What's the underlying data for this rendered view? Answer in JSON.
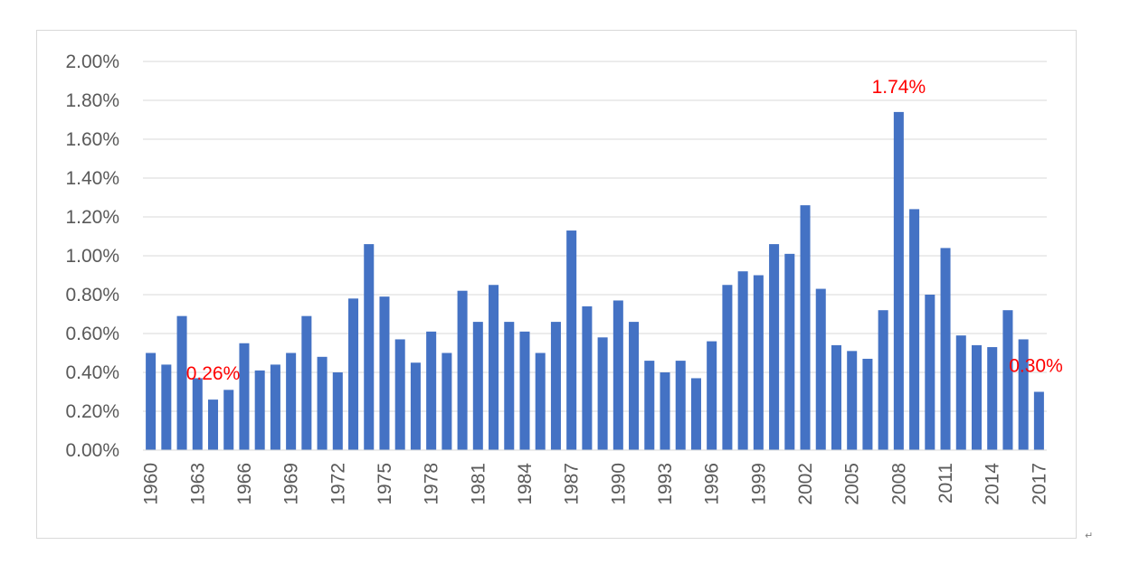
{
  "chart_data": {
    "type": "bar",
    "title": "",
    "xlabel": "",
    "ylabel": "",
    "ylim": [
      0,
      0.02
    ],
    "y_ticks": [
      "0.00%",
      "0.20%",
      "0.40%",
      "0.60%",
      "0.80%",
      "1.00%",
      "1.20%",
      "1.40%",
      "1.60%",
      "1.80%",
      "2.00%"
    ],
    "grid": true,
    "legend": "none",
    "bar_color": "#4472c4",
    "annotation_color": "#ff0000",
    "categories": [
      "1960",
      "1961",
      "1962",
      "1963",
      "1964",
      "1965",
      "1966",
      "1967",
      "1968",
      "1969",
      "1970",
      "1971",
      "1972",
      "1973",
      "1974",
      "1975",
      "1976",
      "1977",
      "1978",
      "1979",
      "1980",
      "1981",
      "1982",
      "1983",
      "1984",
      "1985",
      "1986",
      "1987",
      "1988",
      "1989",
      "1990",
      "1991",
      "1992",
      "1993",
      "1994",
      "1995",
      "1996",
      "1997",
      "1998",
      "1999",
      "2000",
      "2001",
      "2002",
      "2003",
      "2004",
      "2005",
      "2006",
      "2007",
      "2008",
      "2009",
      "2010",
      "2011",
      "2012",
      "2013",
      "2014",
      "2015",
      "2016",
      "2017"
    ],
    "x_tick_labels": [
      "1960",
      "1963",
      "1966",
      "1969",
      "1972",
      "1975",
      "1978",
      "1981",
      "1984",
      "1987",
      "1990",
      "1993",
      "1996",
      "1999",
      "2002",
      "2005",
      "2008",
      "2011",
      "2014",
      "2017"
    ],
    "values": [
      0.005,
      0.0044,
      0.0069,
      0.0037,
      0.0026,
      0.0031,
      0.0055,
      0.0041,
      0.0044,
      0.005,
      0.0069,
      0.0048,
      0.004,
      0.0078,
      0.0106,
      0.0079,
      0.0057,
      0.0045,
      0.0061,
      0.005,
      0.0082,
      0.0066,
      0.0085,
      0.0066,
      0.0061,
      0.005,
      0.0066,
      0.0113,
      0.0074,
      0.0058,
      0.0077,
      0.0066,
      0.0046,
      0.004,
      0.0046,
      0.0037,
      0.0056,
      0.0085,
      0.0092,
      0.009,
      0.0106,
      0.0101,
      0.0126,
      0.0083,
      0.0054,
      0.0051,
      0.0047,
      0.0072,
      0.0174,
      0.0124,
      0.008,
      0.0104,
      0.0059,
      0.0054,
      0.0053,
      0.0072,
      0.0057,
      0.003
    ],
    "annotations": [
      {
        "category": "1964",
        "text": "0.26%"
      },
      {
        "category": "2008",
        "text": "1.74%"
      },
      {
        "category": "2017",
        "text": "0.30%"
      }
    ]
  },
  "page": {
    "return_mark": "↵"
  }
}
